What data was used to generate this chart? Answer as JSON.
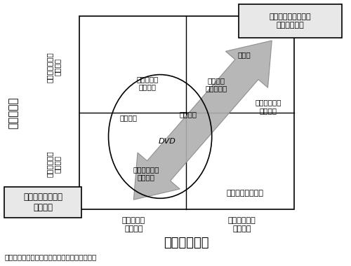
{
  "title": "図１：製品アーキテクチャと日本企業の競争力",
  "x_label": "オープン特性",
  "y_label": "部品間特性",
  "top_right_box": "統合・擦り合わせ・\n造りこみ能力",
  "bottom_left_box": "選択・組み合せ・\n構想能力",
  "x_axis_left": "オープン・\n標準部品",
  "x_axis_right": "クローズド・\n専用部品",
  "y_axis_top": "インテグラル・\nアナログ",
  "y_axis_bottom": "モジュール・\nデジタル",
  "bottom_right_label": "モジュラー型製品",
  "bg_color": "#ffffff",
  "arrow_fill": "#b0b0b0",
  "arrow_edge": "#888888"
}
